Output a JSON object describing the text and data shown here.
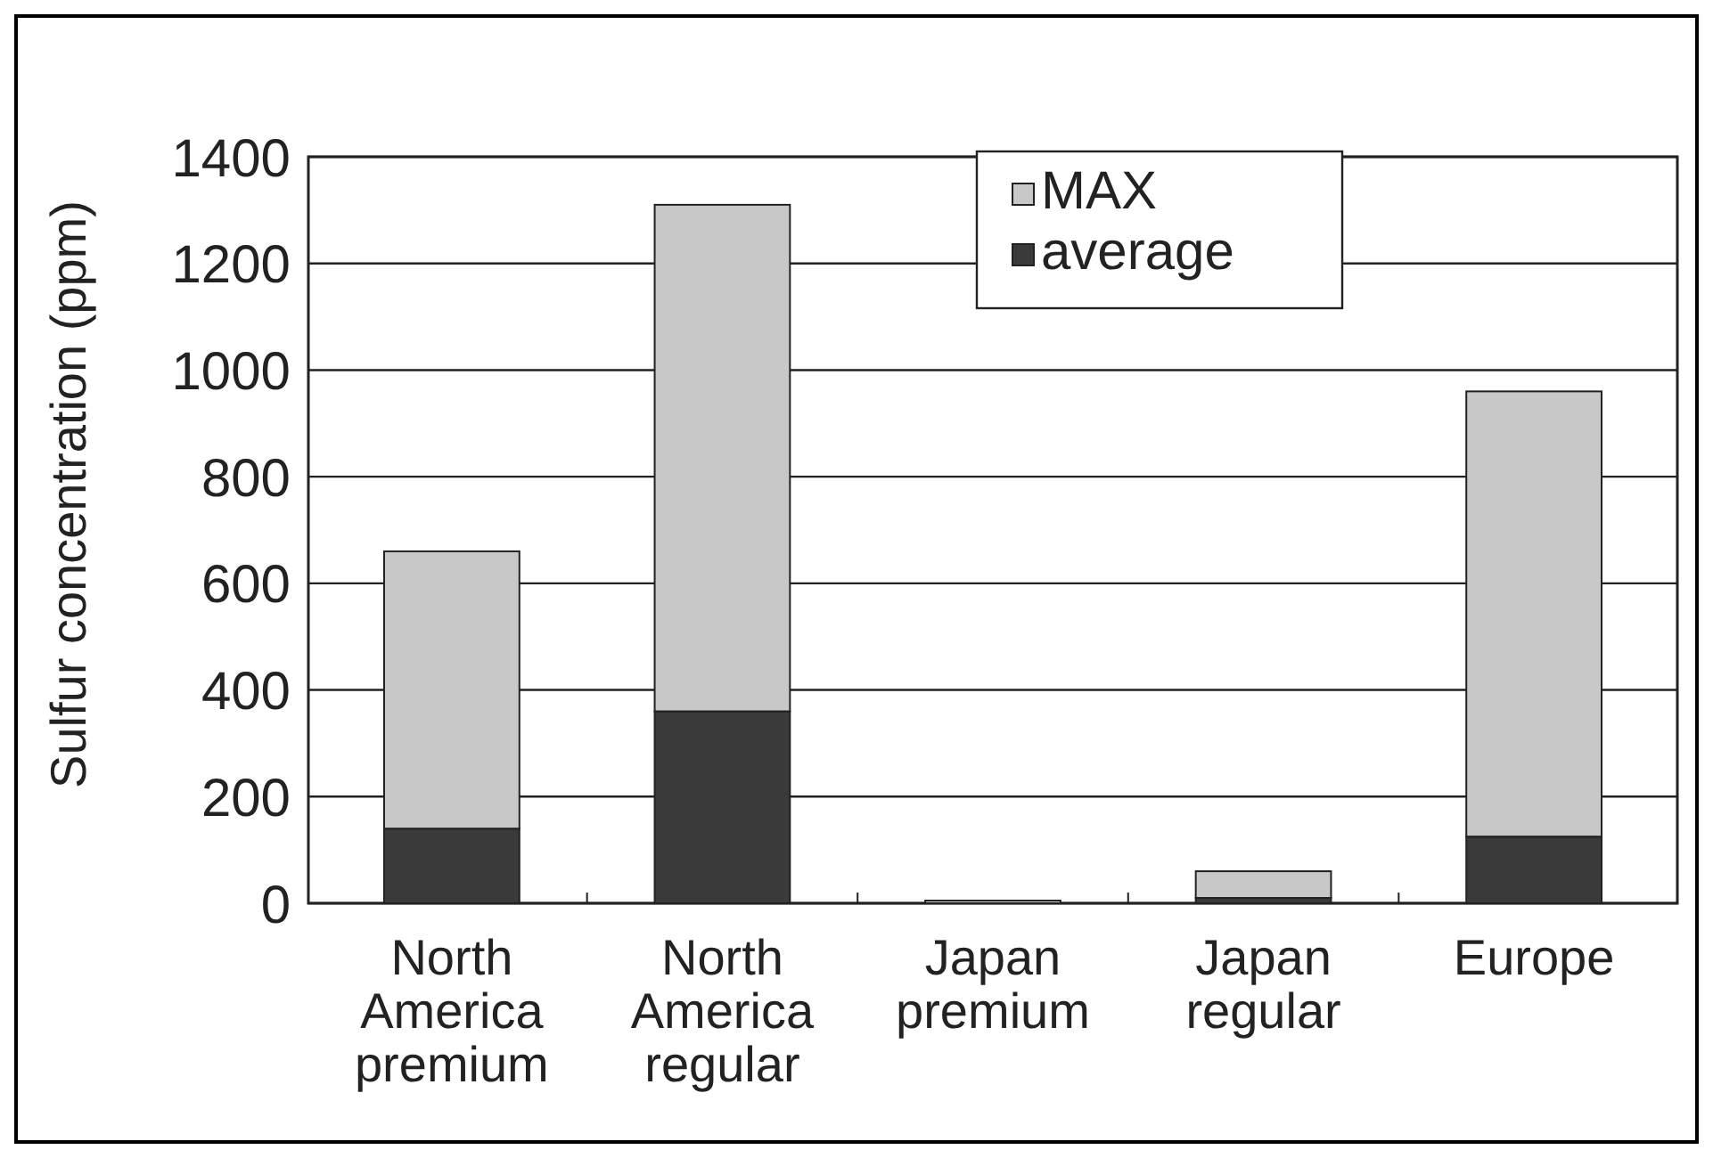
{
  "chart_data": {
    "type": "bar",
    "ylabel": "Sulfur concentration (ppm)",
    "categories": [
      "North America premium",
      "North America regular",
      "Japan premium",
      "Japan regular",
      "Europe"
    ],
    "stacked": true,
    "series": [
      {
        "name": "average",
        "color": "#3a3a3a",
        "values": [
          140,
          360,
          null,
          10,
          125
        ]
      },
      {
        "name": "MAX",
        "color": "#c8c8c8",
        "values": [
          520,
          950,
          5,
          50,
          835
        ]
      }
    ],
    "ylim": [
      0,
      1400
    ],
    "yticks": [
      0,
      200,
      400,
      600,
      800,
      1000,
      1200,
      1400
    ],
    "grid": "y",
    "legend": "top"
  }
}
